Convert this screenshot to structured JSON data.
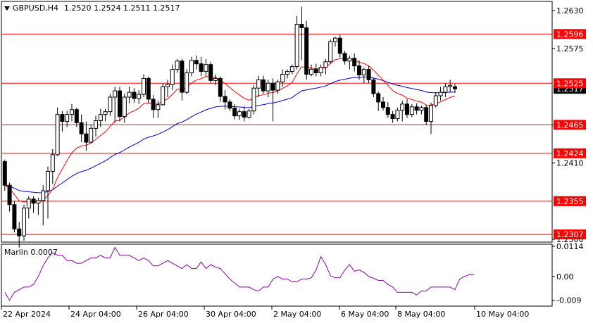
{
  "chart_data": [
    {
      "type": "candlestick",
      "header": {
        "symbol": "GBPUSD,H4",
        "ohlc": "1.2520 1.2524 1.2511 1.2517"
      },
      "ylim": [
        1.2296,
        1.2643
      ],
      "y_ticks": [
        "1.2630",
        "1.2575",
        "1.2465",
        "1.2410",
        "1.2300"
      ],
      "current_price_label": "1.2517",
      "level_labels": [
        "1.2596",
        "1.2525",
        "1.2465",
        "1.2424",
        "1.2355",
        "1.2307"
      ],
      "level_values": [
        1.2596,
        1.2525,
        1.2465,
        1.2424,
        1.2355,
        1.2307
      ],
      "colors": {
        "level_line": "#ff0000",
        "label_bg": "#ff0000",
        "ma_fast": "#ff0000",
        "ma_slow": "#0000cc",
        "candle": "#000000",
        "bull_body": "#ffffff",
        "bear_body": "#000000"
      },
      "candles": [
        [
          1.229,
          1.229,
          1.229,
          1.229
        ],
        [
          1.2412,
          1.2415,
          1.237,
          1.2378
        ],
        [
          1.2378,
          1.2382,
          1.234,
          1.235
        ],
        [
          1.235,
          1.2355,
          1.231,
          1.2315
        ],
        [
          1.2315,
          1.2325,
          1.2288,
          1.2305
        ],
        [
          1.2305,
          1.235,
          1.2298,
          1.2345
        ],
        [
          1.2345,
          1.2362,
          1.233,
          1.2358
        ],
        [
          1.2358,
          1.2362,
          1.2338,
          1.2352
        ],
        [
          1.2352,
          1.236,
          1.2335,
          1.2356
        ],
        [
          1.2356,
          1.2378,
          1.232,
          1.237
        ],
        [
          1.237,
          1.2405,
          1.233,
          1.2398
        ],
        [
          1.2398,
          1.243,
          1.238,
          1.2422
        ],
        [
          1.2422,
          1.249,
          1.242,
          1.248
        ],
        [
          1.248,
          1.2485,
          1.2455,
          1.247
        ],
        [
          1.247,
          1.2485,
          1.2462,
          1.248
        ],
        [
          1.248,
          1.2495,
          1.247,
          1.2487
        ],
        [
          1.2487,
          1.249,
          1.2462,
          1.2468
        ],
        [
          1.2468,
          1.248,
          1.244,
          1.2452
        ],
        [
          1.2452,
          1.247,
          1.2428,
          1.244
        ],
        [
          1.244,
          1.2465,
          1.2438,
          1.246
        ],
        [
          1.246,
          1.2478,
          1.2448,
          1.2471
        ],
        [
          1.2471,
          1.2488,
          1.2462,
          1.248
        ],
        [
          1.248,
          1.2488,
          1.247,
          1.2484
        ],
        [
          1.2484,
          1.251,
          1.2478,
          1.2505
        ],
        [
          1.2505,
          1.252,
          1.2468,
          1.2514
        ],
        [
          1.2514,
          1.252,
          1.247,
          1.2477
        ],
        [
          1.2477,
          1.251,
          1.2468,
          1.2505
        ],
        [
          1.2505,
          1.252,
          1.2496,
          1.2512
        ],
        [
          1.2512,
          1.2518,
          1.2497,
          1.2503
        ],
        [
          1.2503,
          1.2515,
          1.2495,
          1.2509
        ],
        [
          1.2509,
          1.2538,
          1.2505,
          1.2532
        ],
        [
          1.2532,
          1.2535,
          1.2496,
          1.2502
        ],
        [
          1.2502,
          1.2508,
          1.2475,
          1.2487
        ],
        [
          1.2487,
          1.25,
          1.2475,
          1.2494
        ],
        [
          1.2494,
          1.2525,
          1.2493,
          1.252
        ],
        [
          1.252,
          1.253,
          1.2505,
          1.2523
        ],
        [
          1.2523,
          1.2552,
          1.2515,
          1.2545
        ],
        [
          1.2545,
          1.256,
          1.254,
          1.2557
        ],
        [
          1.2557,
          1.256,
          1.25,
          1.2512
        ],
        [
          1.2512,
          1.2545,
          1.2509,
          1.254
        ],
        [
          1.254,
          1.2563,
          1.2535,
          1.2558
        ],
        [
          1.2558,
          1.2565,
          1.2545,
          1.2553
        ],
        [
          1.2553,
          1.2563,
          1.2535,
          1.2542
        ],
        [
          1.2542,
          1.256,
          1.2535,
          1.2552
        ],
        [
          1.2552,
          1.2556,
          1.2525,
          1.2529
        ],
        [
          1.2529,
          1.2538,
          1.2522,
          1.2532
        ],
        [
          1.2532,
          1.2535,
          1.2498,
          1.2506
        ],
        [
          1.2506,
          1.2515,
          1.2487,
          1.2498
        ],
        [
          1.2498,
          1.2502,
          1.2485,
          1.2489
        ],
        [
          1.2489,
          1.2495,
          1.2473,
          1.2478
        ],
        [
          1.2478,
          1.2488,
          1.2472,
          1.2484
        ],
        [
          1.2484,
          1.2492,
          1.247,
          1.2476
        ],
        [
          1.2476,
          1.2488,
          1.2474,
          1.2485
        ],
        [
          1.2485,
          1.2522,
          1.248,
          1.2518
        ],
        [
          1.2518,
          1.2536,
          1.2505,
          1.253
        ],
        [
          1.253,
          1.2536,
          1.251,
          1.2514
        ],
        [
          1.2514,
          1.253,
          1.2505,
          1.2525
        ],
        [
          1.2525,
          1.2532,
          1.247,
          1.2515
        ],
        [
          1.2515,
          1.253,
          1.251,
          1.2527
        ],
        [
          1.2527,
          1.2545,
          1.252,
          1.2538
        ],
        [
          1.2538,
          1.2545,
          1.2532,
          1.2542
        ],
        [
          1.2542,
          1.2552,
          1.2538,
          1.2549
        ],
        [
          1.2549,
          1.2622,
          1.2545,
          1.261
        ],
        [
          1.261,
          1.2635,
          1.2558,
          1.2605
        ],
        [
          1.2605,
          1.2615,
          1.253,
          1.2538
        ],
        [
          1.2538,
          1.2552,
          1.2535,
          1.2545
        ],
        [
          1.2545,
          1.2553,
          1.2535,
          1.254
        ],
        [
          1.254,
          1.2552,
          1.2535,
          1.2548
        ],
        [
          1.2548,
          1.256,
          1.2538,
          1.2556
        ],
        [
          1.2556,
          1.2588,
          1.2553,
          1.2585
        ],
        [
          1.2585,
          1.2592,
          1.2578,
          1.259
        ],
        [
          1.259,
          1.2595,
          1.2562,
          1.2568
        ],
        [
          1.2568,
          1.2572,
          1.2552,
          1.2557
        ],
        [
          1.2557,
          1.2565,
          1.2545,
          1.2561
        ],
        [
          1.2561,
          1.2568,
          1.2542,
          1.255
        ],
        [
          1.255,
          1.2558,
          1.253,
          1.2537
        ],
        [
          1.2537,
          1.2548,
          1.2525,
          1.2545
        ],
        [
          1.2545,
          1.255,
          1.2525,
          1.253
        ],
        [
          1.253,
          1.2532,
          1.2505,
          1.251
        ],
        [
          1.251,
          1.2513,
          1.2485,
          1.2498
        ],
        [
          1.2498,
          1.2505,
          1.2486,
          1.249
        ],
        [
          1.249,
          1.2498,
          1.2475,
          1.248
        ],
        [
          1.248,
          1.2485,
          1.2468,
          1.2474
        ],
        [
          1.2474,
          1.249,
          1.247,
          1.2486
        ],
        [
          1.2486,
          1.25,
          1.247,
          1.2495
        ],
        [
          1.2495,
          1.2502,
          1.2475,
          1.248
        ],
        [
          1.248,
          1.2495,
          1.2476,
          1.2491
        ],
        [
          1.2491,
          1.2496,
          1.248,
          1.2486
        ],
        [
          1.2486,
          1.2493,
          1.248,
          1.249
        ],
        [
          1.249,
          1.2494,
          1.2465,
          1.247
        ],
        [
          1.247,
          1.2497,
          1.2452,
          1.2493
        ],
        [
          1.2493,
          1.2512,
          1.249,
          1.2507
        ],
        [
          1.2507,
          1.252,
          1.25,
          1.2512
        ],
        [
          1.2512,
          1.2525,
          1.2505,
          1.252
        ],
        [
          1.252,
          1.253,
          1.2512,
          1.2522
        ],
        [
          1.252,
          1.2524,
          1.2511,
          1.2517
        ]
      ]
    },
    {
      "type": "line",
      "title": "Marlin 0.0007",
      "ylim": [
        -0.0112,
        0.0122
      ],
      "y_ticks": [
        "0.0114",
        "0.00",
        "-0.009"
      ],
      "x_ticks": [
        "22 Apr 2024",
        "24 Apr 04:00",
        "26 Apr 04:00",
        "30 Apr 04:00",
        "2 May 04:00",
        "6 May 04:00",
        "8 May 04:00",
        "10 May 04:00"
      ],
      "values": [
        -0.006,
        -0.009,
        -0.006,
        -0.005,
        -0.004,
        -0.004,
        -0.003,
        0.0,
        0.004,
        0.007,
        0.009,
        0.008,
        0.008,
        0.006,
        0.006,
        0.005,
        0.005,
        0.006,
        0.007,
        0.007,
        0.008,
        0.007,
        0.007,
        0.011,
        0.008,
        0.008,
        0.008,
        0.007,
        0.006,
        0.007,
        0.006,
        0.004,
        0.004,
        0.005,
        0.006,
        0.005,
        0.004,
        0.003,
        0.0045,
        0.003,
        0.003,
        0.0055,
        0.003,
        0.0045,
        0.0035,
        0.003,
        0.001,
        -0.001,
        -0.0025,
        -0.004,
        -0.004,
        -0.004,
        -0.005,
        -0.0055,
        -0.004,
        -0.004,
        -0.001,
        0.0,
        -0.001,
        -0.001,
        -0.002,
        -0.002,
        -0.001,
        -0.001,
        -0.0005,
        0.0025,
        0.0075,
        0.0045,
        0.0003,
        -0.0005,
        -0.0005,
        0.0025,
        0.0045,
        0.002,
        0.0025,
        0.0015,
        0.0,
        -0.0007,
        -0.0015,
        -0.0015,
        -0.003,
        -0.004,
        -0.006,
        -0.006,
        -0.006,
        -0.006,
        -0.007,
        -0.0055,
        -0.0055,
        -0.004,
        -0.004,
        -0.004,
        -0.004,
        -0.004,
        -0.005,
        -0.001,
        0.0,
        0.0007,
        0.0007
      ]
    }
  ]
}
